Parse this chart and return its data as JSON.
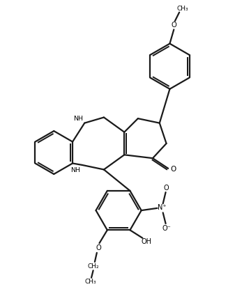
{
  "bg_color": "#ffffff",
  "line_color": "#1a1a1a",
  "line_width": 1.6,
  "figsize": [
    3.37,
    4.25
  ],
  "dpi": 100,
  "xlim": [
    0,
    10
  ],
  "ylim": [
    0,
    13
  ]
}
